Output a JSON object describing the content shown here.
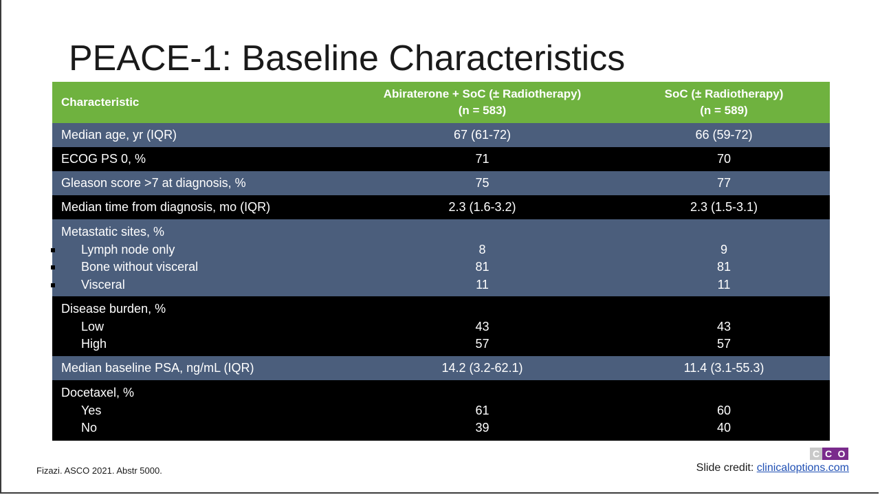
{
  "title": "PEACE-1: Baseline Characteristics",
  "table": {
    "headers": {
      "characteristic": "Characteristic",
      "col1_line1": "Abiraterone + SoC (± Radiotherapy)",
      "col1_line2": "(n = 583)",
      "col2_line1": "SoC (± Radiotherapy)",
      "col2_line2": "(n = 589)"
    },
    "rows": [
      {
        "label": "Median age, yr (IQR)",
        "v1": "67 (61-72)",
        "v2": "66 (59-72)"
      },
      {
        "label": "ECOG PS 0, %",
        "v1": "71",
        "v2": "70"
      },
      {
        "label": "Gleason score >7 at diagnosis, %",
        "v1": "75",
        "v2": "77"
      },
      {
        "label": "Median time from diagnosis, mo (IQR)",
        "v1": "2.3 (1.6-3.2)",
        "v2": "2.3 (1.5-3.1)"
      }
    ],
    "metastatic": {
      "label": "Metastatic sites, %",
      "items": [
        {
          "label": "Lymph node only",
          "v1": "8",
          "v2": "9"
        },
        {
          "label": "Bone without visceral",
          "v1": "81",
          "v2": "81"
        },
        {
          "label": "Visceral",
          "v1": "11",
          "v2": "11"
        }
      ]
    },
    "burden": {
      "label": "Disease burden, %",
      "items": [
        {
          "label": "Low",
          "v1": "43",
          "v2": "43"
        },
        {
          "label": "High",
          "v1": "57",
          "v2": "57"
        }
      ]
    },
    "psa": {
      "label": "Median baseline PSA, ng/mL (IQR)",
      "v1": "14.2 (3.2-62.1)",
      "v2": "11.4 (3.1-55.3)"
    },
    "docetaxel": {
      "label": "Docetaxel, %",
      "items": [
        {
          "label": "Yes",
          "v1": "61",
          "v2": "60"
        },
        {
          "label": "No",
          "v1": "39",
          "v2": "40"
        }
      ]
    }
  },
  "footer": {
    "citation": "Fizazi. ASCO 2021. Abstr 5000.",
    "credit_label": "Slide credit: ",
    "credit_link": "clinicaloptions.com",
    "logo_letters": [
      "C",
      "C",
      "O"
    ]
  },
  "colors": {
    "header": "#6fb23f",
    "row_blue": "#4b5e7c",
    "row_black": "#000000",
    "logo_purple": "#7a2b8c"
  }
}
